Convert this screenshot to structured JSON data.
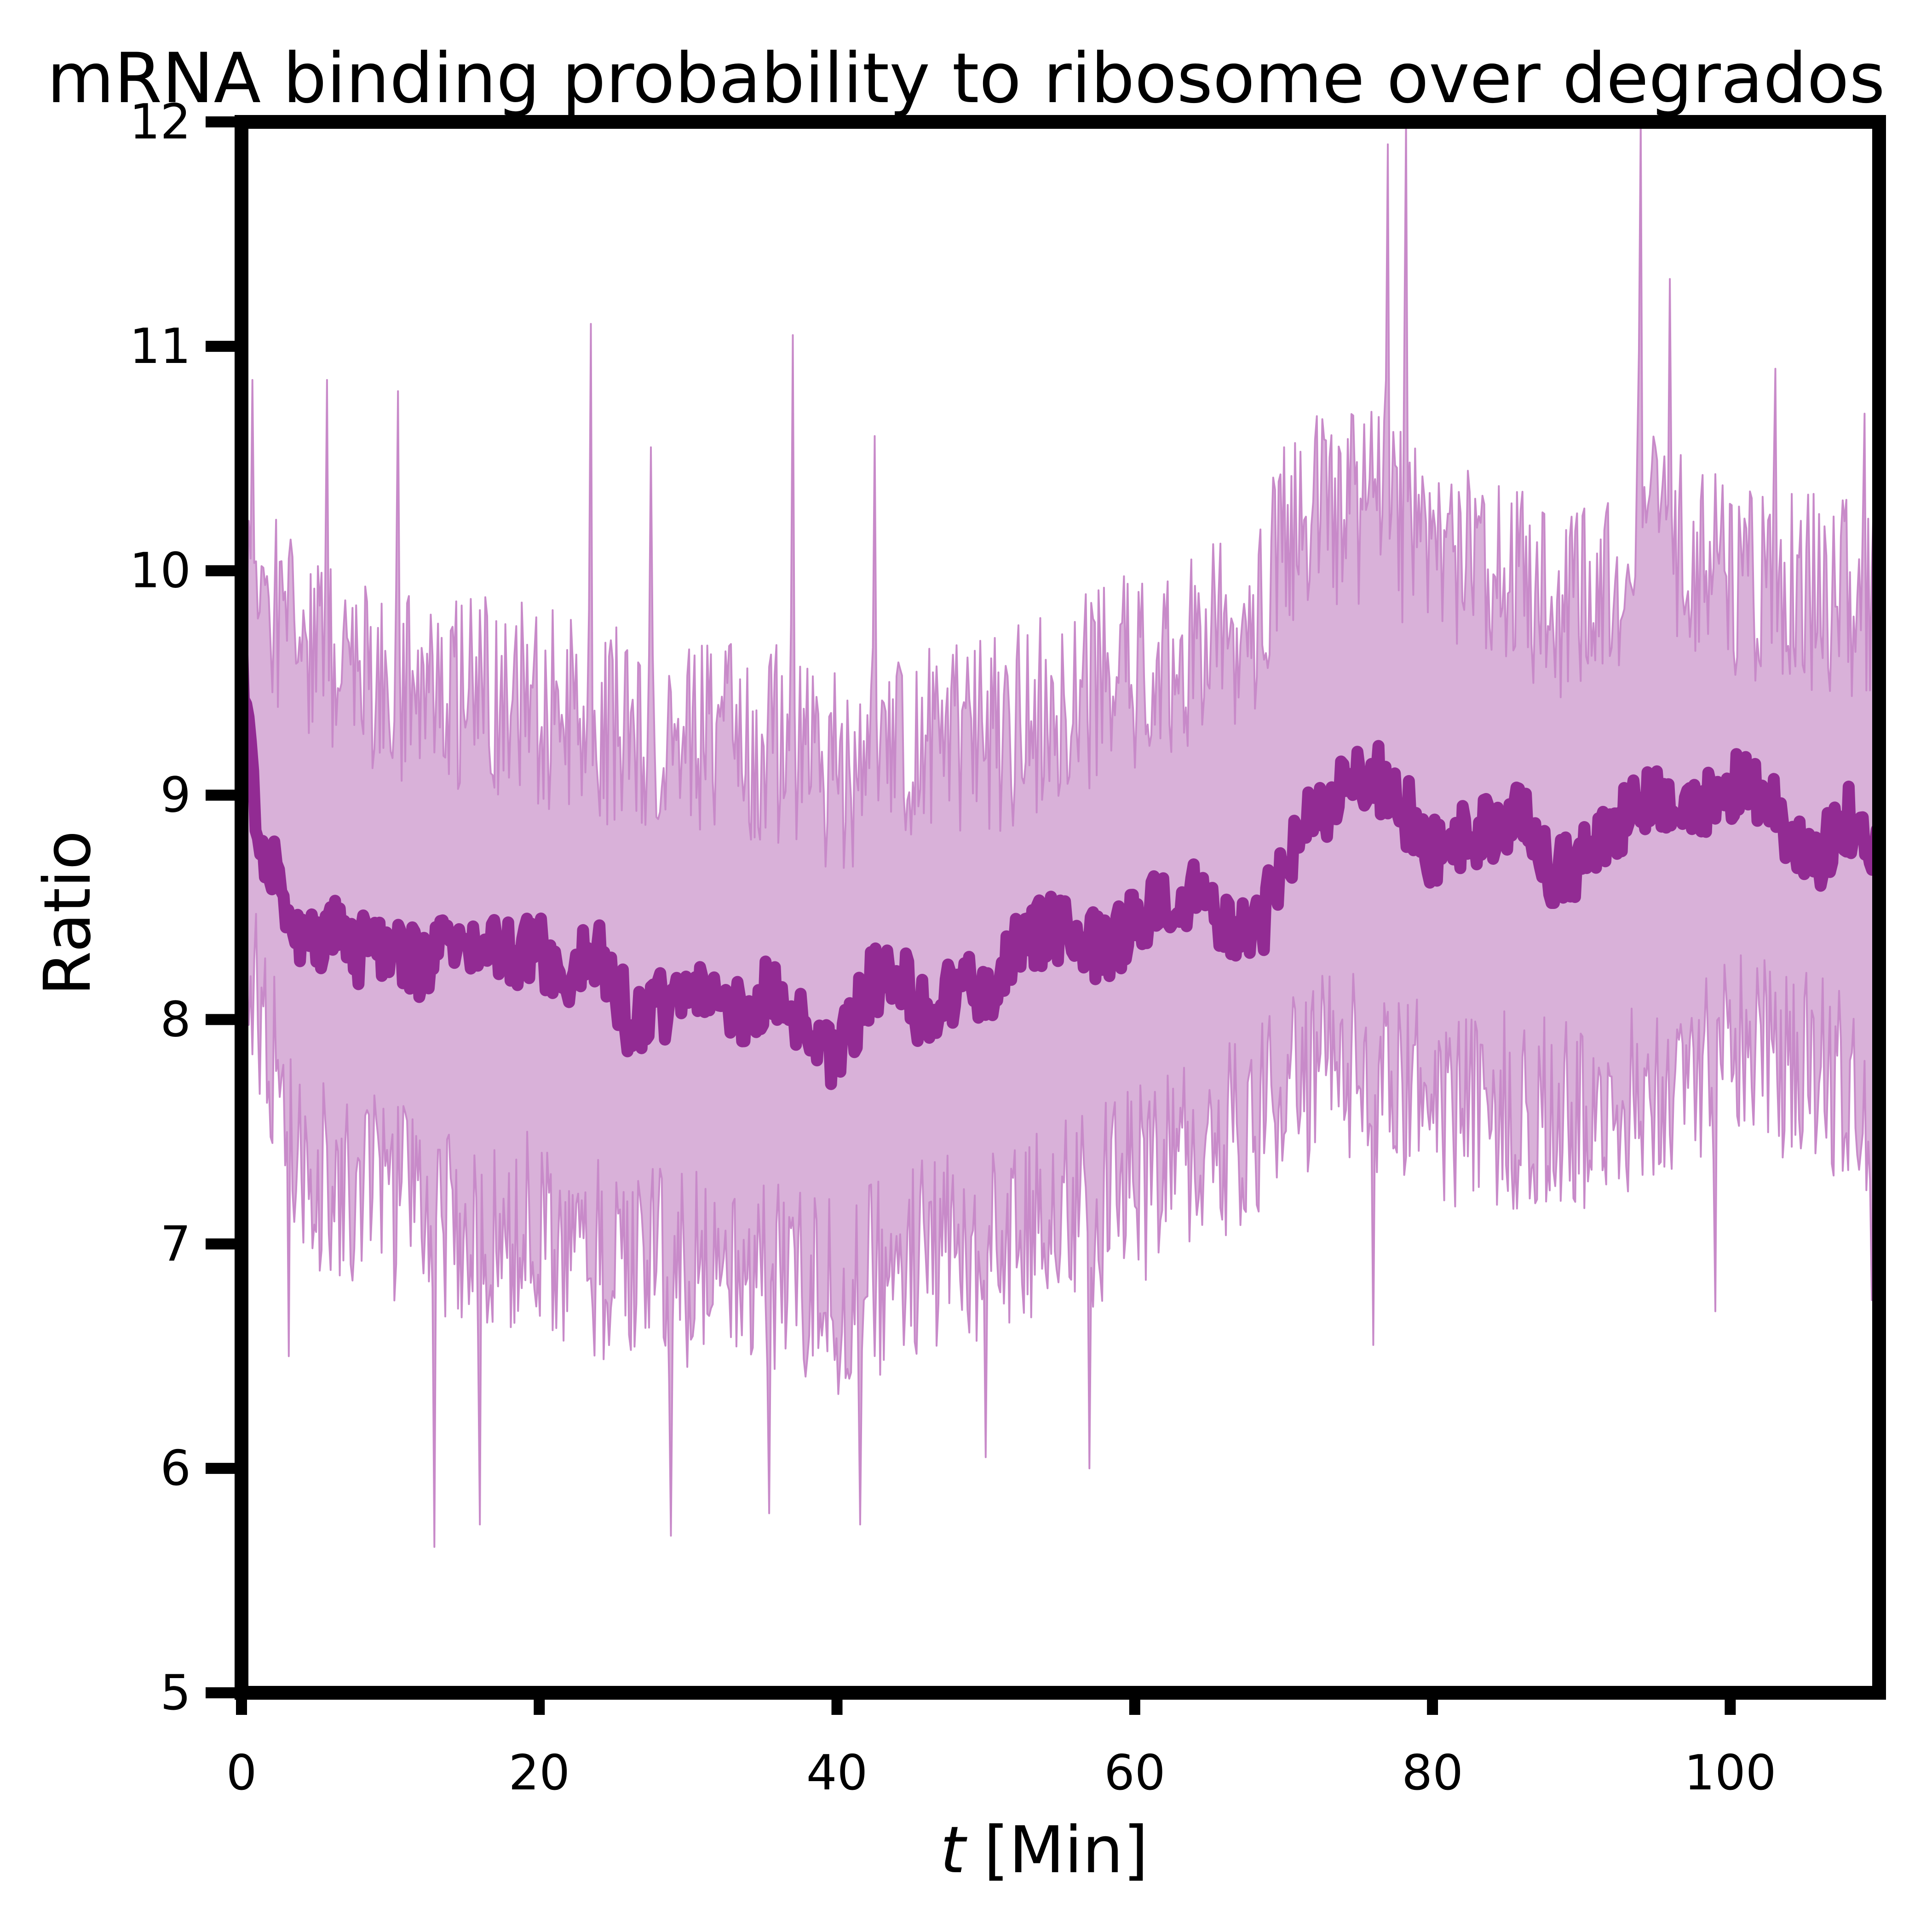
{
  "chart_data": {
    "type": "line",
    "title": "mRNA binding probability to ribosome over degrados",
    "xlabel_var": "t",
    "xlabel_unit": "[Min]",
    "ylabel": "Ratio",
    "xlim": [
      0,
      110
    ],
    "ylim": [
      5,
      12
    ],
    "xticks": [
      0,
      20,
      40,
      60,
      80,
      100
    ],
    "yticks": [
      5,
      6,
      7,
      8,
      9,
      10,
      11,
      12
    ],
    "grid": false,
    "colors": {
      "mean": "#922b93",
      "band": "#d9b1d9",
      "spikes": "#c88ac9"
    },
    "mean_series": {
      "x": [
        0,
        1,
        2,
        3,
        4,
        6,
        8,
        10,
        12,
        14,
        16,
        18,
        20,
        22,
        24,
        26,
        28,
        30,
        32,
        34,
        36,
        38,
        40,
        42,
        44,
        46,
        48,
        50,
        52,
        54,
        56,
        58,
        60,
        62,
        64,
        66,
        68,
        70,
        72,
        74,
        76,
        78,
        80,
        82,
        84,
        86,
        88,
        90,
        92,
        94,
        96,
        98,
        100,
        102,
        104,
        106,
        108,
        110
      ],
      "y": [
        9.6,
        8.9,
        8.7,
        8.5,
        8.35,
        8.4,
        8.3,
        8.35,
        8.25,
        8.4,
        8.3,
        8.3,
        8.3,
        8.2,
        8.35,
        8.0,
        8.05,
        8.1,
        8.1,
        8.05,
        8.15,
        7.9,
        7.8,
        8.15,
        8.2,
        8.0,
        8.15,
        8.1,
        8.35,
        8.4,
        8.35,
        8.3,
        8.45,
        8.5,
        8.55,
        8.4,
        8.35,
        8.7,
        8.95,
        9.0,
        9.1,
        8.95,
        8.75,
        8.8,
        8.85,
        8.95,
        8.65,
        8.7,
        8.85,
        9.0,
        8.9,
        8.95,
        9.05,
        9.0,
        8.85,
        8.75,
        8.9,
        8.7
      ]
    },
    "upper_band": {
      "x": [
        0,
        2,
        5,
        10,
        15,
        20,
        25,
        30,
        35,
        40,
        45,
        50,
        55,
        60,
        65,
        68,
        70,
        75,
        80,
        85,
        90,
        95,
        100,
        105,
        110
      ],
      "y": [
        10.2,
        9.8,
        9.6,
        9.5,
        9.45,
        9.4,
        9.3,
        9.25,
        9.25,
        9.1,
        9.2,
        9.25,
        9.4,
        9.55,
        9.7,
        9.7,
        10.2,
        10.3,
        10.1,
        9.95,
        9.85,
        10.2,
        9.95,
        9.9,
        9.85
      ]
    },
    "lower_band": {
      "x": [
        0,
        2,
        5,
        10,
        15,
        20,
        25,
        30,
        35,
        40,
        45,
        50,
        55,
        60,
        65,
        68,
        70,
        75,
        80,
        85,
        90,
        95,
        100,
        105,
        110
      ],
      "y": [
        8.4,
        7.8,
        7.3,
        7.2,
        7.1,
        7.05,
        6.9,
        6.9,
        6.9,
        6.75,
        6.95,
        7.0,
        7.1,
        7.25,
        7.45,
        7.5,
        7.7,
        7.8,
        7.6,
        7.6,
        7.55,
        7.75,
        7.85,
        7.8,
        7.55
      ]
    },
    "peaks": [
      {
        "x": 0.7,
        "y": 10.85
      },
      {
        "x": 5.8,
        "y": 10.85
      },
      {
        "x": 10.5,
        "y": 10.8
      },
      {
        "x": 23.5,
        "y": 11.1
      },
      {
        "x": 27.5,
        "y": 10.55
      },
      {
        "x": 37,
        "y": 11.05
      },
      {
        "x": 42.5,
        "y": 10.6
      },
      {
        "x": 70,
        "y": 10.55
      },
      {
        "x": 77,
        "y": 11.9
      },
      {
        "x": 78.2,
        "y": 12.0
      },
      {
        "x": 94,
        "y": 12.0
      },
      {
        "x": 96,
        "y": 11.3
      },
      {
        "x": 103,
        "y": 10.9
      },
      {
        "x": 109,
        "y": 10.7
      }
    ],
    "troughs": [
      {
        "x": 3.2,
        "y": 6.5
      },
      {
        "x": 13,
        "y": 5.65
      },
      {
        "x": 16,
        "y": 5.75
      },
      {
        "x": 28.8,
        "y": 5.7
      },
      {
        "x": 35.5,
        "y": 5.8
      },
      {
        "x": 41.5,
        "y": 5.75
      },
      {
        "x": 50,
        "y": 6.05
      },
      {
        "x": 57,
        "y": 6.0
      },
      {
        "x": 76,
        "y": 6.55
      },
      {
        "x": 99,
        "y": 6.7
      },
      {
        "x": 109.5,
        "y": 6.75
      }
    ]
  }
}
